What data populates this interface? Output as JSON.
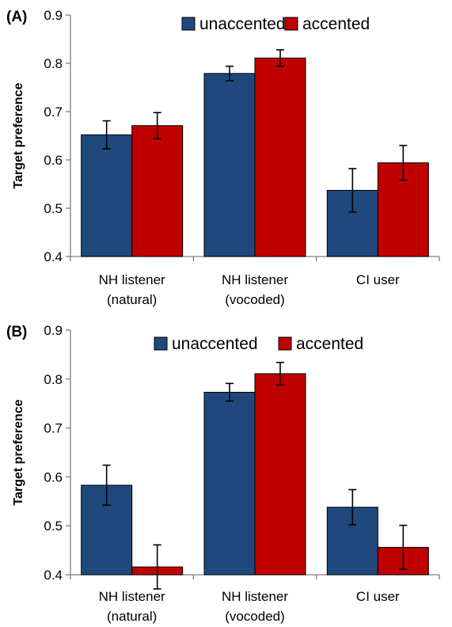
{
  "chart_data": [
    {
      "type": "bar",
      "panel_label": "(A)",
      "ylabel": "Target preference",
      "ylim": [
        0.4,
        0.9
      ],
      "yticks": [
        "0.4",
        "0.5",
        "0.6",
        "0.7",
        "0.8",
        "0.9"
      ],
      "categories": [
        [
          "NH listener",
          "(natural)"
        ],
        [
          "NH listener",
          "(vocoded)"
        ],
        [
          "CI user"
        ]
      ],
      "legend_position": "top-right",
      "series": [
        {
          "name": "unaccented",
          "color": "#1f497d",
          "values": [
            0.652,
            0.779,
            0.537
          ],
          "errors": [
            0.029,
            0.015,
            0.045
          ]
        },
        {
          "name": "accented",
          "color": "#c00000",
          "values": [
            0.671,
            0.811,
            0.594
          ],
          "errors": [
            0.027,
            0.017,
            0.036
          ]
        }
      ]
    },
    {
      "type": "bar",
      "panel_label": "(B)",
      "ylabel": "Target preference",
      "ylim": [
        0.4,
        0.9
      ],
      "yticks": [
        "0.4",
        "0.5",
        "0.6",
        "0.7",
        "0.8",
        "0.9"
      ],
      "categories": [
        [
          "NH listener",
          "(natural)"
        ],
        [
          "NH listener",
          "(vocoded)"
        ],
        [
          "CI user"
        ]
      ],
      "legend_position": "top-right",
      "series": [
        {
          "name": "unaccented",
          "color": "#1f497d",
          "values": [
            0.583,
            0.773,
            0.538
          ],
          "errors": [
            0.041,
            0.018,
            0.036
          ]
        },
        {
          "name": "accented",
          "color": "#c00000",
          "values": [
            0.416,
            0.811,
            0.456
          ],
          "errors": [
            0.045,
            0.023,
            0.045
          ]
        }
      ]
    }
  ]
}
